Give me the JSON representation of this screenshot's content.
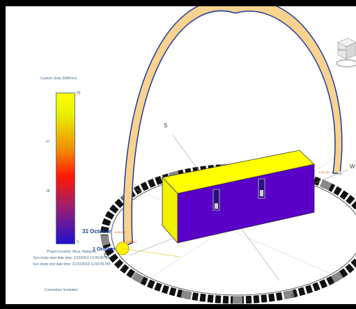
{
  "legend": {
    "title": "Custom Solar (kWh/m²)",
    "ticks": [
      "95",
      "67",
      "38",
      "9"
    ]
  },
  "project_info": {
    "location": "Project location: Muar, Malaysia",
    "start": "Sun study start date time: 1/10/2019 12:00:00 AM",
    "end": "Sun study end date time: 31/10/2019 11:59:00 PM"
  },
  "analysis_label": "Cumulative Insolation",
  "view_cube": {
    "face_label": "BACK"
  },
  "compass": {
    "south": "S",
    "east": "E",
    "west": "W",
    "north": "N"
  },
  "sun_path": {
    "date_label_top": "31 October",
    "date_label_bottom": "1 October",
    "sunrise_time_top": "6:55 AM",
    "sunrise_time_bottom": "7:05 AM",
    "sunset_time": "7:02 PM"
  },
  "colors": {
    "roof": "#ffff00",
    "south_wall": "#5a00c8",
    "east_wall": "#f0f000",
    "sun_path_fill": "#f8d28e",
    "sun_path_edge": "#1a3a9a",
    "ring": "#2a2a2a"
  }
}
